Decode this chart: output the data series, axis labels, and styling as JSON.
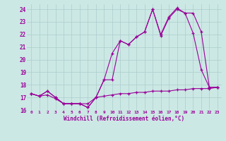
{
  "xlabel": "Windchill (Refroidissement éolien,°C)",
  "xlim": [
    -0.5,
    23.5
  ],
  "ylim": [
    16,
    24.4
  ],
  "xticks": [
    0,
    1,
    2,
    3,
    4,
    5,
    6,
    7,
    8,
    9,
    10,
    11,
    12,
    13,
    14,
    15,
    16,
    17,
    18,
    19,
    20,
    21,
    22,
    23
  ],
  "yticks": [
    16,
    17,
    18,
    19,
    20,
    21,
    22,
    23,
    24
  ],
  "background_color": "#cce8e4",
  "line_color": "#990099",
  "grid_color": "#aacccc",
  "line1_x": [
    0,
    1,
    2,
    3,
    4,
    5,
    6,
    7,
    8,
    9,
    10,
    11,
    12,
    13,
    14,
    15,
    16,
    17,
    18,
    19,
    20,
    21,
    22,
    23
  ],
  "line1_y": [
    17.3,
    17.1,
    17.5,
    17.0,
    16.5,
    16.5,
    16.5,
    16.2,
    17.0,
    18.4,
    18.4,
    21.5,
    21.2,
    21.8,
    22.2,
    24.0,
    21.9,
    23.3,
    24.0,
    23.7,
    22.1,
    19.2,
    17.8,
    17.8
  ],
  "line2_x": [
    0,
    1,
    2,
    3,
    4,
    5,
    6,
    7,
    8,
    9,
    10,
    11,
    12,
    13,
    14,
    15,
    16,
    17,
    18,
    19,
    20,
    21,
    22,
    23
  ],
  "line2_y": [
    17.3,
    17.1,
    17.5,
    17.0,
    16.5,
    16.5,
    16.5,
    16.2,
    17.0,
    18.4,
    20.5,
    21.5,
    21.2,
    21.8,
    22.2,
    24.0,
    22.0,
    23.4,
    24.1,
    23.7,
    23.7,
    22.2,
    17.8,
    17.8
  ],
  "line3_x": [
    0,
    1,
    2,
    3,
    4,
    5,
    6,
    7,
    8,
    9,
    10,
    11,
    12,
    13,
    14,
    15,
    16,
    17,
    18,
    19,
    20,
    21,
    22,
    23
  ],
  "line3_y": [
    17.3,
    17.1,
    17.2,
    16.9,
    16.5,
    16.5,
    16.5,
    16.5,
    17.0,
    17.1,
    17.2,
    17.3,
    17.3,
    17.4,
    17.4,
    17.5,
    17.5,
    17.5,
    17.6,
    17.6,
    17.7,
    17.7,
    17.7,
    17.8
  ]
}
